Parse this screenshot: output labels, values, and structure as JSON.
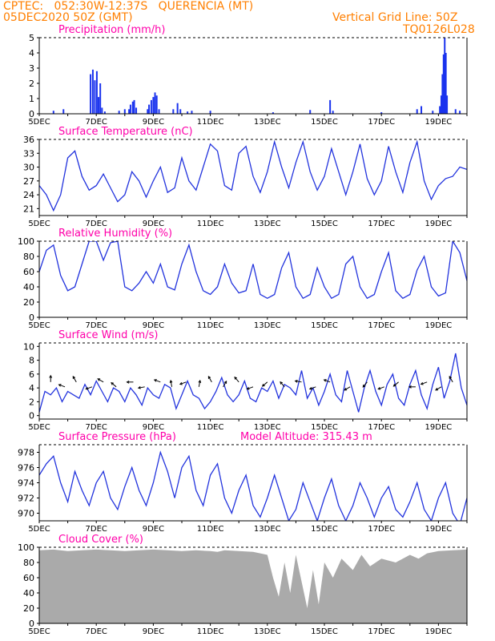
{
  "header": {
    "line1": "CPTEC:   052:30W-12:37S   QUERENCIA (MT)",
    "line2": "05DEC2020 50Z (GMT)",
    "grid_note": "Vertical Grid Line: 50Z",
    "model_id": "TQ0126L028"
  },
  "colors": {
    "header": "#ff7f00",
    "title": "#ff00aa",
    "line": "#2233dd",
    "bar": "#1a33ee",
    "cloud": "#aaaaaa",
    "grid": "#000000"
  },
  "x_axis": {
    "labels": [
      "5DEC",
      "7DEC",
      "9DEC",
      "11DEC",
      "13DEC",
      "15DEC",
      "17DEC",
      "19DEC"
    ],
    "label_days": [
      0,
      2,
      4,
      6,
      8,
      10,
      12,
      14
    ],
    "range_days": [
      0,
      15
    ]
  },
  "chart_data": [
    {
      "id": "precip",
      "type": "bar",
      "title": "Precipitation (mm/h)",
      "ylim": [
        0,
        5
      ],
      "yticks": [
        0,
        1,
        2,
        3,
        4,
        5
      ],
      "points": [
        [
          0.5,
          0.2
        ],
        [
          0.85,
          0.3
        ],
        [
          1.8,
          2.6
        ],
        [
          1.88,
          2.9
        ],
        [
          1.95,
          2.2
        ],
        [
          2.02,
          2.8
        ],
        [
          2.08,
          1.1
        ],
        [
          2.14,
          2.0
        ],
        [
          2.2,
          0.4
        ],
        [
          2.3,
          0.15
        ],
        [
          2.8,
          0.2
        ],
        [
          3.0,
          0.3
        ],
        [
          3.15,
          0.3
        ],
        [
          3.2,
          0.6
        ],
        [
          3.28,
          0.8
        ],
        [
          3.33,
          0.9
        ],
        [
          3.4,
          0.4
        ],
        [
          3.8,
          0.3
        ],
        [
          3.85,
          0.6
        ],
        [
          3.93,
          0.9
        ],
        [
          4.0,
          1.1
        ],
        [
          4.06,
          1.4
        ],
        [
          4.12,
          1.2
        ],
        [
          4.2,
          0.3
        ],
        [
          4.7,
          0.3
        ],
        [
          4.85,
          0.7
        ],
        [
          4.95,
          0.3
        ],
        [
          5.2,
          0.15
        ],
        [
          5.35,
          0.2
        ],
        [
          6.0,
          0.2
        ],
        [
          8.2,
          0.1
        ],
        [
          9.5,
          0.25
        ],
        [
          10.2,
          0.9
        ],
        [
          10.3,
          0.2
        ],
        [
          12.0,
          0.1
        ],
        [
          13.25,
          0.3
        ],
        [
          13.4,
          0.5
        ],
        [
          13.8,
          0.2
        ],
        [
          14.05,
          0.5
        ],
        [
          14.1,
          1.2
        ],
        [
          14.14,
          2.6
        ],
        [
          14.18,
          3.9
        ],
        [
          14.22,
          5.0
        ],
        [
          14.26,
          4.0
        ],
        [
          14.3,
          1.2
        ],
        [
          14.6,
          0.3
        ],
        [
          14.75,
          0.2
        ]
      ]
    },
    {
      "id": "temp",
      "type": "line",
      "title": "Surface Temperature (nC)",
      "ylim": [
        19.5,
        36
      ],
      "yticks": [
        21,
        24,
        27,
        30,
        33,
        36
      ],
      "x": [
        0,
        0.25,
        0.5,
        0.75,
        1,
        1.25,
        1.5,
        1.75,
        2,
        2.25,
        2.5,
        2.75,
        3,
        3.25,
        3.5,
        3.75,
        4,
        4.25,
        4.5,
        4.75,
        5,
        5.25,
        5.5,
        5.75,
        6,
        6.25,
        6.5,
        6.75,
        7,
        7.25,
        7.5,
        7.75,
        8,
        8.25,
        8.5,
        8.75,
        9,
        9.25,
        9.5,
        9.75,
        10,
        10.25,
        10.5,
        10.75,
        11,
        11.25,
        11.5,
        11.75,
        12,
        12.25,
        12.5,
        12.75,
        13,
        13.25,
        13.5,
        13.75,
        14,
        14.25,
        14.5,
        14.75,
        15
      ],
      "y": [
        26,
        24,
        20.6,
        24,
        32,
        33.5,
        28,
        25,
        26,
        28.5,
        25.5,
        22.5,
        24,
        29,
        27,
        23.5,
        27,
        30,
        24.5,
        25.5,
        32,
        27,
        25,
        30,
        35,
        33.5,
        26,
        25,
        33,
        34.5,
        28,
        24.5,
        29,
        35.5,
        30,
        25.5,
        31,
        35.5,
        29,
        25,
        28,
        34,
        29,
        24,
        29,
        35,
        27.5,
        24,
        27,
        34.5,
        29,
        24.5,
        31,
        35.5,
        27,
        23,
        26,
        27.5,
        28,
        30,
        29.5
      ]
    },
    {
      "id": "rh",
      "type": "line",
      "title": "Relative Humidity (%)",
      "ylim": [
        0,
        100
      ],
      "yticks": [
        0,
        20,
        40,
        60,
        80,
        100
      ],
      "x": [
        0,
        0.25,
        0.5,
        0.75,
        1,
        1.25,
        1.5,
        1.75,
        2,
        2.25,
        2.5,
        2.75,
        3,
        3.25,
        3.5,
        3.75,
        4,
        4.25,
        4.5,
        4.75,
        5,
        5.25,
        5.5,
        5.75,
        6,
        6.25,
        6.5,
        6.75,
        7,
        7.25,
        7.5,
        7.75,
        8,
        8.25,
        8.5,
        8.75,
        9,
        9.25,
        9.5,
        9.75,
        10,
        10.25,
        10.5,
        10.75,
        11,
        11.25,
        11.5,
        11.75,
        12,
        12.25,
        12.5,
        12.75,
        13,
        13.25,
        13.5,
        13.75,
        14,
        14.25,
        14.5,
        14.75,
        15
      ],
      "y": [
        60,
        88,
        95,
        55,
        35,
        40,
        70,
        100,
        100,
        75,
        98,
        100,
        40,
        35,
        45,
        60,
        45,
        70,
        40,
        36,
        70,
        95,
        60,
        35,
        30,
        40,
        70,
        45,
        32,
        35,
        70,
        30,
        25,
        30,
        65,
        85,
        40,
        25,
        30,
        65,
        40,
        25,
        30,
        70,
        80,
        40,
        25,
        30,
        60,
        85,
        35,
        25,
        30,
        62,
        80,
        40,
        28,
        32,
        100,
        85,
        48
      ]
    },
    {
      "id": "wind",
      "type": "line",
      "title": "Surface Wind (m/s)",
      "ylim": [
        -0.5,
        10.5
      ],
      "yticks": [
        0,
        2,
        4,
        6,
        8,
        10
      ],
      "x": [
        0,
        0.2,
        0.4,
        0.6,
        0.8,
        1,
        1.2,
        1.4,
        1.6,
        1.8,
        2,
        2.2,
        2.4,
        2.6,
        2.8,
        3,
        3.2,
        3.4,
        3.6,
        3.8,
        4,
        4.2,
        4.4,
        4.6,
        4.8,
        5,
        5.2,
        5.4,
        5.6,
        5.8,
        6,
        6.2,
        6.4,
        6.6,
        6.8,
        7,
        7.2,
        7.4,
        7.6,
        7.8,
        8,
        8.2,
        8.4,
        8.6,
        8.8,
        9,
        9.2,
        9.4,
        9.6,
        9.8,
        10,
        10.2,
        10.4,
        10.6,
        10.8,
        11,
        11.2,
        11.4,
        11.6,
        11.8,
        12,
        12.2,
        12.4,
        12.6,
        12.8,
        13,
        13.2,
        13.4,
        13.6,
        13.8,
        14,
        14.2,
        14.4,
        14.6,
        14.8,
        15
      ],
      "y": [
        0.5,
        3.5,
        3,
        4,
        2,
        3.5,
        3,
        2.5,
        4.5,
        3,
        5,
        3.5,
        2,
        4,
        3.5,
        2,
        4,
        3,
        1.5,
        4,
        3,
        2.5,
        4.5,
        4,
        1,
        3,
        5,
        3,
        2.5,
        1,
        2,
        3.5,
        5.5,
        3,
        2,
        3,
        5,
        2.5,
        2,
        4,
        3.5,
        5,
        2.5,
        4.5,
        4,
        3,
        6.5,
        2.5,
        4,
        1.5,
        3.5,
        6,
        3,
        2,
        6.5,
        3.5,
        0.5,
        4,
        6.5,
        3.5,
        1.5,
        4.5,
        6,
        2.5,
        1.5,
        4.5,
        6.5,
        3,
        1,
        4.5,
        7,
        2.5,
        5,
        9,
        4,
        1.5
      ]
    },
    {
      "id": "pres",
      "type": "line",
      "title": "Surface Pressure (hPa)",
      "ylim": [
        969,
        979
      ],
      "yticks": [
        970,
        972,
        974,
        976,
        978
      ],
      "x": [
        0,
        0.25,
        0.5,
        0.75,
        1,
        1.25,
        1.5,
        1.75,
        2,
        2.25,
        2.5,
        2.75,
        3,
        3.25,
        3.5,
        3.75,
        4,
        4.25,
        4.5,
        4.75,
        5,
        5.25,
        5.5,
        5.75,
        6,
        6.25,
        6.5,
        6.75,
        7,
        7.25,
        7.5,
        7.75,
        8,
        8.25,
        8.5,
        8.75,
        9,
        9.25,
        9.5,
        9.75,
        10,
        10.25,
        10.5,
        10.75,
        11,
        11.25,
        11.5,
        11.75,
        12,
        12.25,
        12.5,
        12.75,
        13,
        13.25,
        13.5,
        13.75,
        14,
        14.25,
        14.5,
        14.75,
        15
      ],
      "y": [
        975,
        976.5,
        977.5,
        974,
        971.5,
        975.5,
        973,
        971,
        974,
        975.5,
        972,
        970.5,
        973.5,
        976,
        973,
        971,
        974,
        978,
        975.5,
        972,
        976,
        977.5,
        973,
        971,
        975,
        976.5,
        972,
        970,
        973,
        975,
        971,
        969.5,
        972,
        975,
        972,
        969,
        970.5,
        974,
        971.5,
        969,
        972,
        974.5,
        971,
        969,
        971,
        974,
        972,
        969.5,
        972,
        973.5,
        970.5,
        969.5,
        971.5,
        974,
        970.5,
        969,
        972,
        974,
        970,
        968.5,
        972
      ]
    },
    {
      "id": "cloud",
      "type": "area",
      "title": "Cloud Cover (%)",
      "ylim": [
        0,
        100
      ],
      "yticks": [
        0,
        20,
        40,
        60,
        80,
        100
      ],
      "x": [
        0,
        0.5,
        1,
        1.5,
        2,
        2.5,
        3,
        3.5,
        4,
        4.5,
        5,
        5.5,
        6,
        6.25,
        6.5,
        7,
        7.5,
        8,
        8.2,
        8.4,
        8.6,
        8.8,
        9,
        9.2,
        9.4,
        9.6,
        9.8,
        10,
        10.3,
        10.6,
        11,
        11.3,
        11.6,
        12,
        12.5,
        13,
        13.3,
        13.6,
        14,
        14.5,
        15
      ],
      "y": [
        96,
        97,
        95,
        96,
        97,
        96,
        95,
        96,
        97,
        96,
        95,
        96,
        95,
        94,
        96,
        95,
        94,
        90,
        60,
        35,
        80,
        40,
        90,
        55,
        20,
        70,
        25,
        80,
        60,
        85,
        70,
        90,
        75,
        85,
        80,
        90,
        85,
        92,
        95,
        96,
        97
      ]
    }
  ],
  "panels_extra": {
    "altitude_label": "Model Altitude: 315.43 m",
    "wind_arrows": [
      [
        0.4,
        90
      ],
      [
        0.9,
        160
      ],
      [
        1.3,
        120
      ],
      [
        1.85,
        200
      ],
      [
        2.25,
        150
      ],
      [
        2.7,
        140
      ],
      [
        3.3,
        180
      ],
      [
        3.7,
        190
      ],
      [
        4.25,
        160
      ],
      [
        4.65,
        100
      ],
      [
        5.15,
        200
      ],
      [
        5.6,
        80
      ],
      [
        6.05,
        120
      ],
      [
        6.45,
        60
      ],
      [
        7.0,
        130
      ],
      [
        7.5,
        200
      ],
      [
        8.0,
        220
      ],
      [
        8.6,
        130
      ],
      [
        9.2,
        170
      ],
      [
        9.7,
        200
      ],
      [
        10.2,
        160
      ],
      [
        10.9,
        210
      ],
      [
        11.5,
        230
      ],
      [
        12.1,
        200
      ],
      [
        12.6,
        220
      ],
      [
        13.2,
        180
      ],
      [
        13.6,
        200
      ],
      [
        14.1,
        210
      ],
      [
        14.5,
        120
      ]
    ]
  }
}
